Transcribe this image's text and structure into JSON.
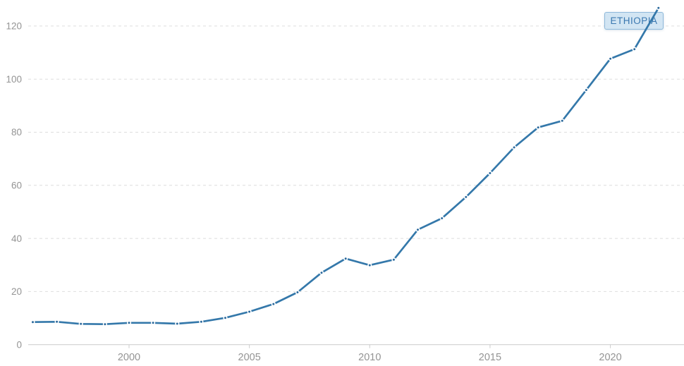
{
  "page": {
    "background_color": "#ffffff"
  },
  "series_label": {
    "label": "ETHIOPIA",
    "background_color": "#d2e5f3",
    "border_color": "#8fb9da",
    "text_color": "#3a78b0"
  },
  "chart_data": {
    "type": "line",
    "title": "",
    "xlabel": "",
    "ylabel": "",
    "x": [
      1996,
      1997,
      1998,
      1999,
      2000,
      2001,
      2002,
      2003,
      2004,
      2005,
      2006,
      2007,
      2008,
      2009,
      2010,
      2011,
      2012,
      2013,
      2014,
      2015,
      2016,
      2017,
      2018,
      2019,
      2020,
      2021,
      2022
    ],
    "series": [
      {
        "name": "Ethiopia",
        "color": "#3478aa",
        "point_color": "#2b699c",
        "values": [
          8.5,
          8.6,
          7.8,
          7.7,
          8.2,
          8.2,
          7.9,
          8.6,
          10.1,
          12.4,
          15.3,
          19.7,
          27.1,
          32.4,
          29.9,
          32.0,
          43.3,
          47.6,
          55.6,
          64.6,
          74.3,
          81.8,
          84.3,
          95.9,
          107.7,
          111.3,
          126.8
        ]
      }
    ],
    "xticks": [
      2000,
      2005,
      2010,
      2015,
      2020
    ],
    "yticks": [
      0,
      20,
      40,
      60,
      80,
      100,
      120
    ],
    "xlim": [
      1995.81,
      2023.06
    ],
    "ylim": [
      0,
      129.8
    ],
    "grid": {
      "horizontal": true,
      "style": "dashed",
      "color": "#dedede"
    },
    "axis_color": "#c9c9c9",
    "tick_color": "#cccccc",
    "tick_label_color": "#949494",
    "legend_position": "end-of-line-top-right"
  }
}
